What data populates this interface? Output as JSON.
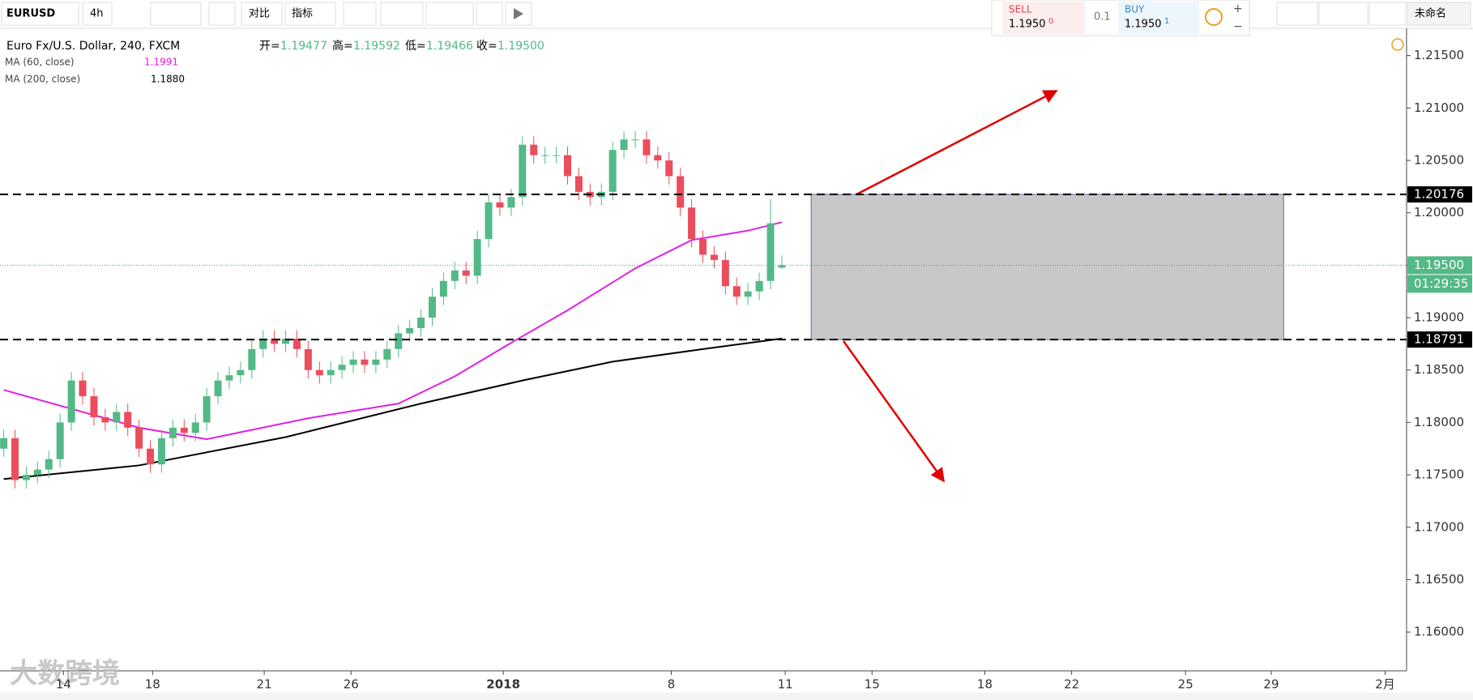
{
  "toolbar": {
    "symbol": "EURUSD",
    "interval": "4h",
    "compare": "对比",
    "indicators": "指标"
  },
  "trade": {
    "sell": "SELL",
    "sell_price": "1.1950",
    "sell_sup": "0",
    "spread": "0.1",
    "buy": "BUY",
    "buy_price": "1.1950",
    "buy_sup": "1",
    "plus": "+",
    "minus": "−"
  },
  "layout_name": "未命名",
  "watermark": "大数跨境",
  "legend": {
    "title": "Euro Fx/U.S. Dollar, 240, FXCM",
    "o_label": "开=",
    "o": "1.19477",
    "h_label": "高=",
    "h": "1.19592",
    "l_label": "低=",
    "l": "1.19466",
    "c_label": "收=",
    "c": "1.19500"
  },
  "chart_data": {
    "type": "candlestick",
    "up_color": "#53b987",
    "down_color": "#eb4d5c",
    "candles": [
      [
        1.1775,
        1.1793,
        1.1767,
        1.1785
      ],
      [
        1.1785,
        1.1793,
        1.1737,
        1.1745
      ],
      [
        1.1745,
        1.1758,
        1.1737,
        1.175
      ],
      [
        1.175,
        1.1763,
        1.1742,
        1.1755
      ],
      [
        1.1755,
        1.1773,
        1.1747,
        1.1765
      ],
      [
        1.1765,
        1.1808,
        1.1757,
        1.18
      ],
      [
        1.18,
        1.1848,
        1.1792,
        1.184
      ],
      [
        1.184,
        1.1848,
        1.1817,
        1.1825
      ],
      [
        1.1825,
        1.1833,
        1.1797,
        1.1805
      ],
      [
        1.1805,
        1.1813,
        1.1792,
        1.18
      ],
      [
        1.18,
        1.1818,
        1.1792,
        1.181
      ],
      [
        1.181,
        1.1818,
        1.1787,
        1.1795
      ],
      [
        1.1795,
        1.1803,
        1.1767,
        1.1775
      ],
      [
        1.1775,
        1.1783,
        1.1752,
        1.176
      ],
      [
        1.176,
        1.1793,
        1.1752,
        1.1785
      ],
      [
        1.1785,
        1.1803,
        1.1777,
        1.1795
      ],
      [
        1.1795,
        1.1803,
        1.1782,
        1.179
      ],
      [
        1.179,
        1.1808,
        1.1782,
        1.18
      ],
      [
        1.18,
        1.1833,
        1.1792,
        1.1825
      ],
      [
        1.1825,
        1.1848,
        1.1817,
        1.184
      ],
      [
        1.184,
        1.1853,
        1.1832,
        1.1845
      ],
      [
        1.1845,
        1.1858,
        1.1837,
        1.185
      ],
      [
        1.185,
        1.1878,
        1.1842,
        1.187
      ],
      [
        1.187,
        1.1888,
        1.1862,
        1.188
      ],
      [
        1.188,
        1.1888,
        1.1867,
        1.1875
      ],
      [
        1.1875,
        1.1888,
        1.1867,
        1.188
      ],
      [
        1.188,
        1.1888,
        1.1862,
        1.187
      ],
      [
        1.187,
        1.1878,
        1.1842,
        1.185
      ],
      [
        1.185,
        1.1858,
        1.1837,
        1.1845
      ],
      [
        1.1845,
        1.1858,
        1.1837,
        1.185
      ],
      [
        1.185,
        1.1863,
        1.1842,
        1.1855
      ],
      [
        1.1855,
        1.1868,
        1.1847,
        1.186
      ],
      [
        1.186,
        1.1868,
        1.1847,
        1.1855
      ],
      [
        1.1855,
        1.1868,
        1.1847,
        1.186
      ],
      [
        1.186,
        1.1878,
        1.1852,
        1.187
      ],
      [
        1.187,
        1.1893,
        1.1862,
        1.1885
      ],
      [
        1.1885,
        1.1898,
        1.1877,
        1.189
      ],
      [
        1.189,
        1.1908,
        1.1882,
        1.19
      ],
      [
        1.19,
        1.1928,
        1.1892,
        1.192
      ],
      [
        1.192,
        1.1943,
        1.1912,
        1.1935
      ],
      [
        1.1935,
        1.1953,
        1.1927,
        1.1945
      ],
      [
        1.1945,
        1.1953,
        1.1932,
        1.194
      ],
      [
        1.194,
        1.1983,
        1.1932,
        1.1975
      ],
      [
        1.1975,
        1.2018,
        1.1967,
        1.201
      ],
      [
        1.201,
        1.2018,
        1.1997,
        1.2005
      ],
      [
        1.2005,
        1.2023,
        1.1997,
        1.2015
      ],
      [
        1.2015,
        1.2073,
        1.2007,
        1.2065
      ],
      [
        1.2065,
        1.2073,
        1.2047,
        1.2055
      ],
      [
        1.2055,
        1.2063,
        1.2047,
        1.2055
      ],
      [
        1.2055,
        1.2063,
        1.2047,
        1.2055
      ],
      [
        1.2055,
        1.2063,
        1.2027,
        1.2035
      ],
      [
        1.2035,
        1.2043,
        1.2012,
        1.202
      ],
      [
        1.202,
        1.2028,
        1.2007,
        1.2015
      ],
      [
        1.2015,
        1.2028,
        1.2007,
        1.202
      ],
      [
        1.202,
        1.2068,
        1.2012,
        1.206
      ],
      [
        1.206,
        1.2078,
        1.2052,
        1.207
      ],
      [
        1.207,
        1.2078,
        1.2062,
        1.207
      ],
      [
        1.207,
        1.2078,
        1.2047,
        1.2055
      ],
      [
        1.2055,
        1.2063,
        1.2042,
        1.205
      ],
      [
        1.205,
        1.2058,
        1.2027,
        1.2035
      ],
      [
        1.2035,
        1.2043,
        1.1997,
        1.2005
      ],
      [
        1.2005,
        1.2013,
        1.1967,
        1.1975
      ],
      [
        1.1975,
        1.1983,
        1.1952,
        1.196
      ],
      [
        1.196,
        1.1968,
        1.1947,
        1.1955
      ],
      [
        1.1955,
        1.1963,
        1.1922,
        1.193
      ],
      [
        1.193,
        1.1938,
        1.1912,
        1.192
      ],
      [
        1.192,
        1.1933,
        1.1912,
        1.1925
      ],
      [
        1.1925,
        1.1943,
        1.1917,
        1.1935
      ],
      [
        1.1935,
        1.2013,
        1.1927,
        1.199
      ],
      [
        1.19477,
        1.19592,
        1.19466,
        1.195
      ]
    ],
    "series": [
      {
        "name": "MA (60, close)",
        "color": "#e020e0",
        "last_label": "1.1991",
        "x": [
          0,
          12,
          18,
          27,
          35,
          40,
          45,
          50,
          56,
          61,
          66,
          69
        ],
        "values": [
          1.1831,
          1.1795,
          1.1784,
          1.1804,
          1.1818,
          1.1844,
          1.1876,
          1.1907,
          1.1947,
          1.1974,
          1.1983,
          1.1991
        ]
      },
      {
        "name": "MA (200, close)",
        "color": "#000000",
        "last_label": "1.1880",
        "x": [
          0,
          12,
          25,
          37,
          46,
          54,
          62,
          69
        ],
        "values": [
          1.1746,
          1.1759,
          1.1786,
          1.1818,
          1.184,
          1.1858,
          1.187,
          1.188
        ]
      }
    ],
    "levels": [
      {
        "value": 1.20176,
        "label": "1.20176"
      },
      {
        "value": 1.18791,
        "label": "1.18791"
      }
    ],
    "current": {
      "value": 1.195,
      "label": "1.19500",
      "countdown": "01:29:35"
    },
    "zone": {
      "x": [
        71.6,
        113.5
      ],
      "y": [
        1.18791,
        1.20176
      ]
    },
    "xlim": [
      -0.33,
      124.4
    ],
    "ylim": [
      1.1563,
      1.2176
    ],
    "xticks": [
      {
        "value": 5.3,
        "label": "14"
      },
      {
        "value": 13.2,
        "label": "18"
      },
      {
        "value": 23.1,
        "label": "21"
      },
      {
        "value": 30.8,
        "label": "26"
      },
      {
        "value": 44.3,
        "label": "2018"
      },
      {
        "value": 59.2,
        "label": "8"
      },
      {
        "value": 69.3,
        "label": "11"
      },
      {
        "value": 77,
        "label": "15"
      },
      {
        "value": 87,
        "label": "18"
      },
      {
        "value": 94.7,
        "label": "22"
      },
      {
        "value": 104.8,
        "label": "25"
      },
      {
        "value": 112.4,
        "label": "29"
      },
      {
        "value": 122.5,
        "label": "2月"
      }
    ],
    "yticks": [
      {
        "value": 1.16,
        "label": "1.16000"
      },
      {
        "value": 1.165,
        "label": "1.16500"
      },
      {
        "value": 1.17,
        "label": "1.17000"
      },
      {
        "value": 1.175,
        "label": "1.17500"
      },
      {
        "value": 1.18,
        "label": "1.18000"
      },
      {
        "value": 1.185,
        "label": "1.18500"
      },
      {
        "value": 1.19,
        "label": "1.19000"
      },
      {
        "value": 1.195,
        "label": "1.19500"
      },
      {
        "value": 1.2,
        "label": "1.20000"
      },
      {
        "value": 1.205,
        "label": "1.20500"
      },
      {
        "value": 1.21,
        "label": "1.21000"
      },
      {
        "value": 1.215,
        "label": "1.21500"
      }
    ],
    "grid": false
  }
}
